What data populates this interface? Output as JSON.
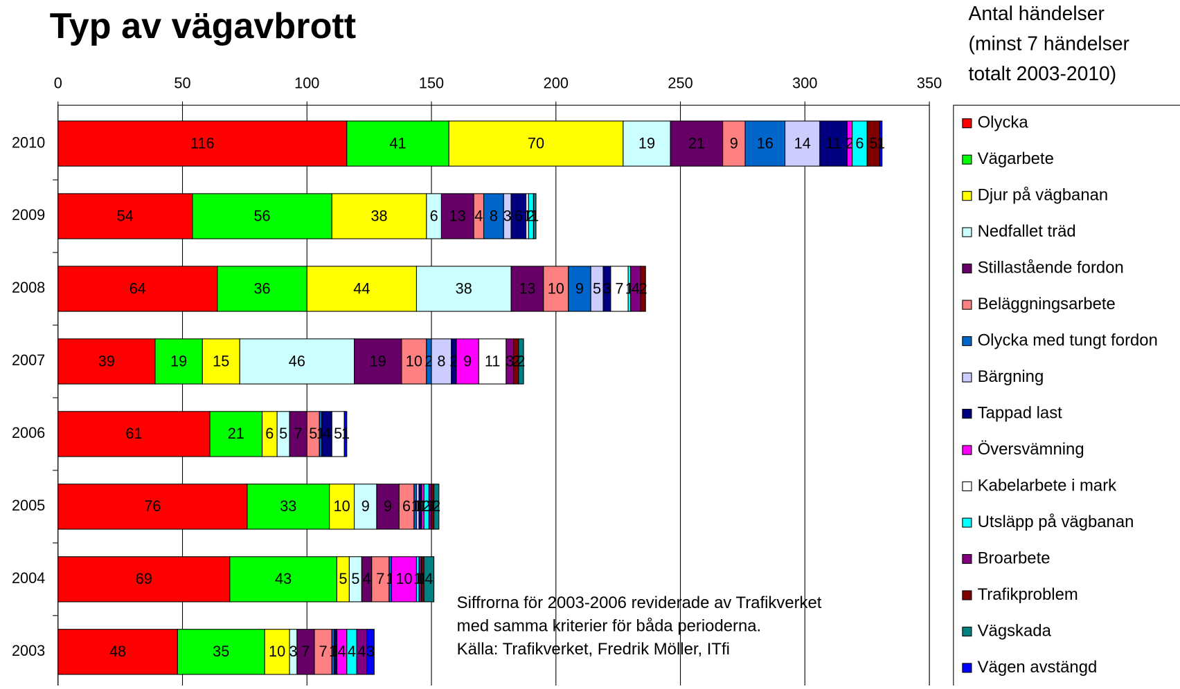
{
  "chart_data": {
    "type": "stacked_barh",
    "title": "Typ av vägavbrott",
    "legend_title": [
      "Antal händelser",
      "(minst 7 händelser",
      "totalt 2003-2010)"
    ],
    "annotation": [
      "Siffrorna för 2003-2006 reviderade av Trafikverket",
      "med samma kriterier för båda perioderna.",
      "Källa: Trafikverket, Fredrik Möller, ITfi"
    ],
    "categories": [
      "2010",
      "2009",
      "2008",
      "2007",
      "2006",
      "2005",
      "2004",
      "2003"
    ],
    "xlim": [
      0,
      350
    ],
    "xticks": [
      0,
      50,
      100,
      150,
      200,
      250,
      300,
      350
    ],
    "grid": true,
    "legend": "right",
    "series": [
      {
        "name": "Olycka",
        "color": "#ff0000",
        "values": [
          116,
          54,
          64,
          39,
          61,
          76,
          69,
          48
        ]
      },
      {
        "name": "Vägarbete",
        "color": "#00ff00",
        "values": [
          41,
          56,
          36,
          19,
          21,
          33,
          43,
          35
        ]
      },
      {
        "name": "Djur på vägbanan",
        "color": "#ffff00",
        "values": [
          70,
          38,
          44,
          15,
          6,
          10,
          5,
          10
        ]
      },
      {
        "name": "Nedfallet träd",
        "color": "#ccffff",
        "values": [
          19,
          6,
          38,
          46,
          5,
          9,
          5,
          3
        ]
      },
      {
        "name": "Stillastående fordon",
        "color": "#660066",
        "values": [
          21,
          13,
          13,
          19,
          7,
          9,
          4,
          7
        ]
      },
      {
        "name": "Beläggningsarbete",
        "color": "#ff8080",
        "values": [
          9,
          4,
          10,
          10,
          5,
          6,
          7,
          7
        ]
      },
      {
        "name": "Olycka med tungt fordon",
        "color": "#0066cc",
        "values": [
          16,
          8,
          9,
          2,
          1,
          1,
          1,
          1
        ]
      },
      {
        "name": "Bärgning",
        "color": "#ccccff",
        "values": [
          14,
          3,
          5,
          8,
          0,
          1,
          0,
          0
        ]
      },
      {
        "name": "Tappad last",
        "color": "#000080",
        "values": [
          11,
          6,
          3,
          2,
          4,
          1,
          0,
          1
        ]
      },
      {
        "name": "Översvämning",
        "color": "#ff00ff",
        "values": [
          2,
          0,
          0,
          9,
          0,
          1,
          10,
          4
        ]
      },
      {
        "name": "Kabelarbete i mark",
        "color": "#ffffff",
        "values": [
          0,
          1,
          7,
          11,
          5,
          0,
          0,
          0
        ]
      },
      {
        "name": "Utsläpp på vägbanan",
        "color": "#00ffff",
        "values": [
          6,
          2,
          1,
          0,
          0,
          2,
          1,
          4
        ]
      },
      {
        "name": "Broarbete",
        "color": "#800080",
        "values": [
          0,
          0,
          4,
          3,
          0,
          1,
          1,
          4
        ]
      },
      {
        "name": "Trafikproblem",
        "color": "#800000",
        "values": [
          5,
          0,
          2,
          2,
          0,
          1,
          1,
          0
        ]
      },
      {
        "name": "Vägskada",
        "color": "#008080",
        "values": [
          0,
          1,
          0,
          2,
          0,
          2,
          4,
          0
        ]
      },
      {
        "name": "Vägen avstängd",
        "color": "#0000ff",
        "values": [
          1,
          0,
          0,
          0,
          1,
          0,
          0,
          3
        ]
      }
    ]
  }
}
